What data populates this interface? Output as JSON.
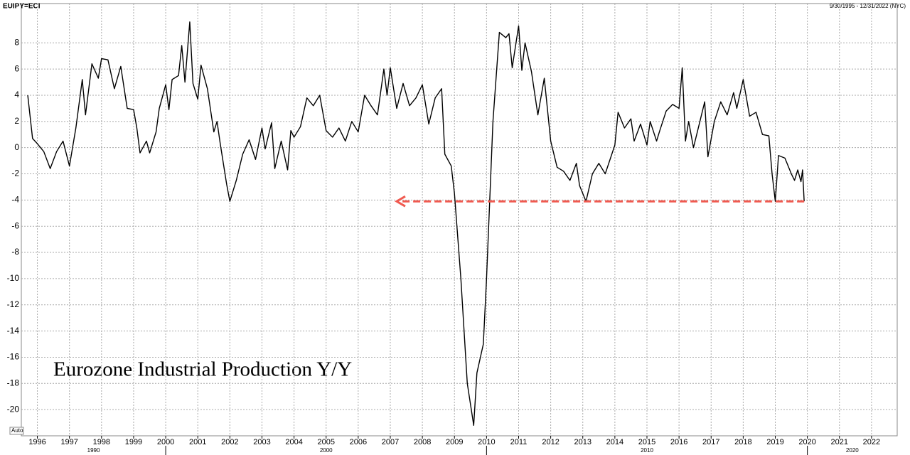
{
  "chart_data": {
    "type": "line",
    "symbol": "EUIPY=ECI",
    "date_range": "9/30/1995 - 12/31/2022 (NYC)",
    "scale_mode": "Auto",
    "annotation": "Eurozone Industrial Production Y/Y",
    "color": "#000000",
    "grid": true,
    "xlim": [
      1995.5,
      2022.8
    ],
    "ylim": [
      -22,
      11
    ],
    "xticks": [
      1996,
      1997,
      1998,
      1999,
      2000,
      2001,
      2002,
      2003,
      2004,
      2005,
      2006,
      2007,
      2008,
      2009,
      2010,
      2011,
      2012,
      2013,
      2014,
      2015,
      2016,
      2017,
      2018,
      2019,
      2020,
      2021,
      2022
    ],
    "decade_ticks": [
      1990,
      2000,
      2010,
      2020
    ],
    "yticks": [
      8,
      6,
      4,
      2,
      0,
      -2,
      -4,
      -6,
      -8,
      -10,
      -12,
      -14,
      -16,
      -18,
      -20
    ],
    "arrow": {
      "y": -4.1,
      "x_from": 2019.9,
      "x_to": 2007.2,
      "color": "#f05a50"
    },
    "x": [
      1995.7,
      1995.85,
      1996.0,
      1996.2,
      1996.4,
      1996.6,
      1996.8,
      1997.0,
      1997.2,
      1997.4,
      1997.5,
      1997.7,
      1997.9,
      1998.0,
      1998.2,
      1998.4,
      1998.6,
      1998.8,
      1999.0,
      1999.1,
      1999.2,
      1999.4,
      1999.5,
      1999.7,
      1999.8,
      2000.0,
      2000.1,
      2000.2,
      2000.4,
      2000.5,
      2000.6,
      2000.75,
      2000.85,
      2001.0,
      2001.1,
      2001.3,
      2001.5,
      2001.6,
      2001.7,
      2001.9,
      2002.0,
      2002.2,
      2002.4,
      2002.6,
      2002.8,
      2003.0,
      2003.1,
      2003.3,
      2003.4,
      2003.6,
      2003.8,
      2003.9,
      2004.0,
      2004.2,
      2004.4,
      2004.6,
      2004.8,
      2005.0,
      2005.2,
      2005.4,
      2005.6,
      2005.8,
      2006.0,
      2006.2,
      2006.4,
      2006.6,
      2006.8,
      2006.9,
      2007.0,
      2007.2,
      2007.4,
      2007.6,
      2007.8,
      2008.0,
      2008.2,
      2008.4,
      2008.6,
      2008.7,
      2008.9,
      2009.0,
      2009.2,
      2009.4,
      2009.6,
      2009.7,
      2009.9,
      2010.0,
      2010.2,
      2010.4,
      2010.6,
      2010.7,
      2010.8,
      2011.0,
      2011.1,
      2011.2,
      2011.4,
      2011.6,
      2011.8,
      2012.0,
      2012.2,
      2012.4,
      2012.6,
      2012.8,
      2012.9,
      2013.1,
      2013.3,
      2013.5,
      2013.7,
      2014.0,
      2014.1,
      2014.3,
      2014.5,
      2014.6,
      2014.8,
      2015.0,
      2015.1,
      2015.3,
      2015.4,
      2015.6,
      2015.8,
      2016.0,
      2016.1,
      2016.2,
      2016.3,
      2016.45,
      2016.6,
      2016.8,
      2016.9,
      2017.1,
      2017.3,
      2017.5,
      2017.7,
      2017.8,
      2018.0,
      2018.2,
      2018.4,
      2018.6,
      2018.8,
      2018.9,
      2019.0,
      2019.1,
      2019.3,
      2019.5,
      2019.6,
      2019.7,
      2019.8,
      2019.85,
      2019.9
    ],
    "values": [
      4,
      0.7,
      0.3,
      -0.3,
      -1.6,
      -0.3,
      0.5,
      -1.4,
      1.5,
      5.2,
      2.5,
      6.4,
      5.3,
      6.8,
      6.7,
      4.5,
      6.2,
      3.0,
      2.9,
      1.5,
      -0.4,
      0.5,
      -0.4,
      1.2,
      3.0,
      4.8,
      2.9,
      5.2,
      5.5,
      7.8,
      5.0,
      9.6,
      4.9,
      3.7,
      6.3,
      4.5,
      1.2,
      2.0,
      0.3,
      -2.8,
      -4.1,
      -2.5,
      -0.5,
      0.6,
      -0.9,
      1.5,
      -0.1,
      1.9,
      -1.6,
      0.5,
      -1.7,
      1.3,
      0.8,
      1.6,
      3.8,
      3.2,
      4.0,
      1.3,
      0.8,
      1.5,
      0.5,
      2.0,
      1.2,
      4.0,
      3.2,
      2.5,
      6.0,
      4.0,
      6.1,
      3.0,
      4.9,
      3.2,
      3.8,
      4.8,
      1.8,
      3.8,
      4.5,
      -0.5,
      -1.4,
      -3.5,
      -10,
      -18,
      -21.2,
      -17.2,
      -15,
      -10,
      2.0,
      8.8,
      8.4,
      8.7,
      6.1,
      9.3,
      5.9,
      8.0,
      5.8,
      2.5,
      5.3,
      0.5,
      -1.5,
      -1.8,
      -2.5,
      -1.2,
      -2.9,
      -4.1,
      -2.0,
      -1.2,
      -2.0,
      0.2,
      2.7,
      1.5,
      2.2,
      0.5,
      1.8,
      0.2,
      2.0,
      0.5,
      1.3,
      2.8,
      3.3,
      3.0,
      6.1,
      0.5,
      2.0,
      0.0,
      1.5,
      3.5,
      -0.7,
      2.0,
      3.5,
      2.5,
      4.2,
      3.0,
      5.2,
      2.4,
      2.7,
      1.0,
      0.9,
      -2.0,
      -4.1,
      -0.6,
      -0.8,
      -2.0,
      -2.5,
      -1.7,
      -2.6,
      -1.7,
      -4.1
    ]
  }
}
